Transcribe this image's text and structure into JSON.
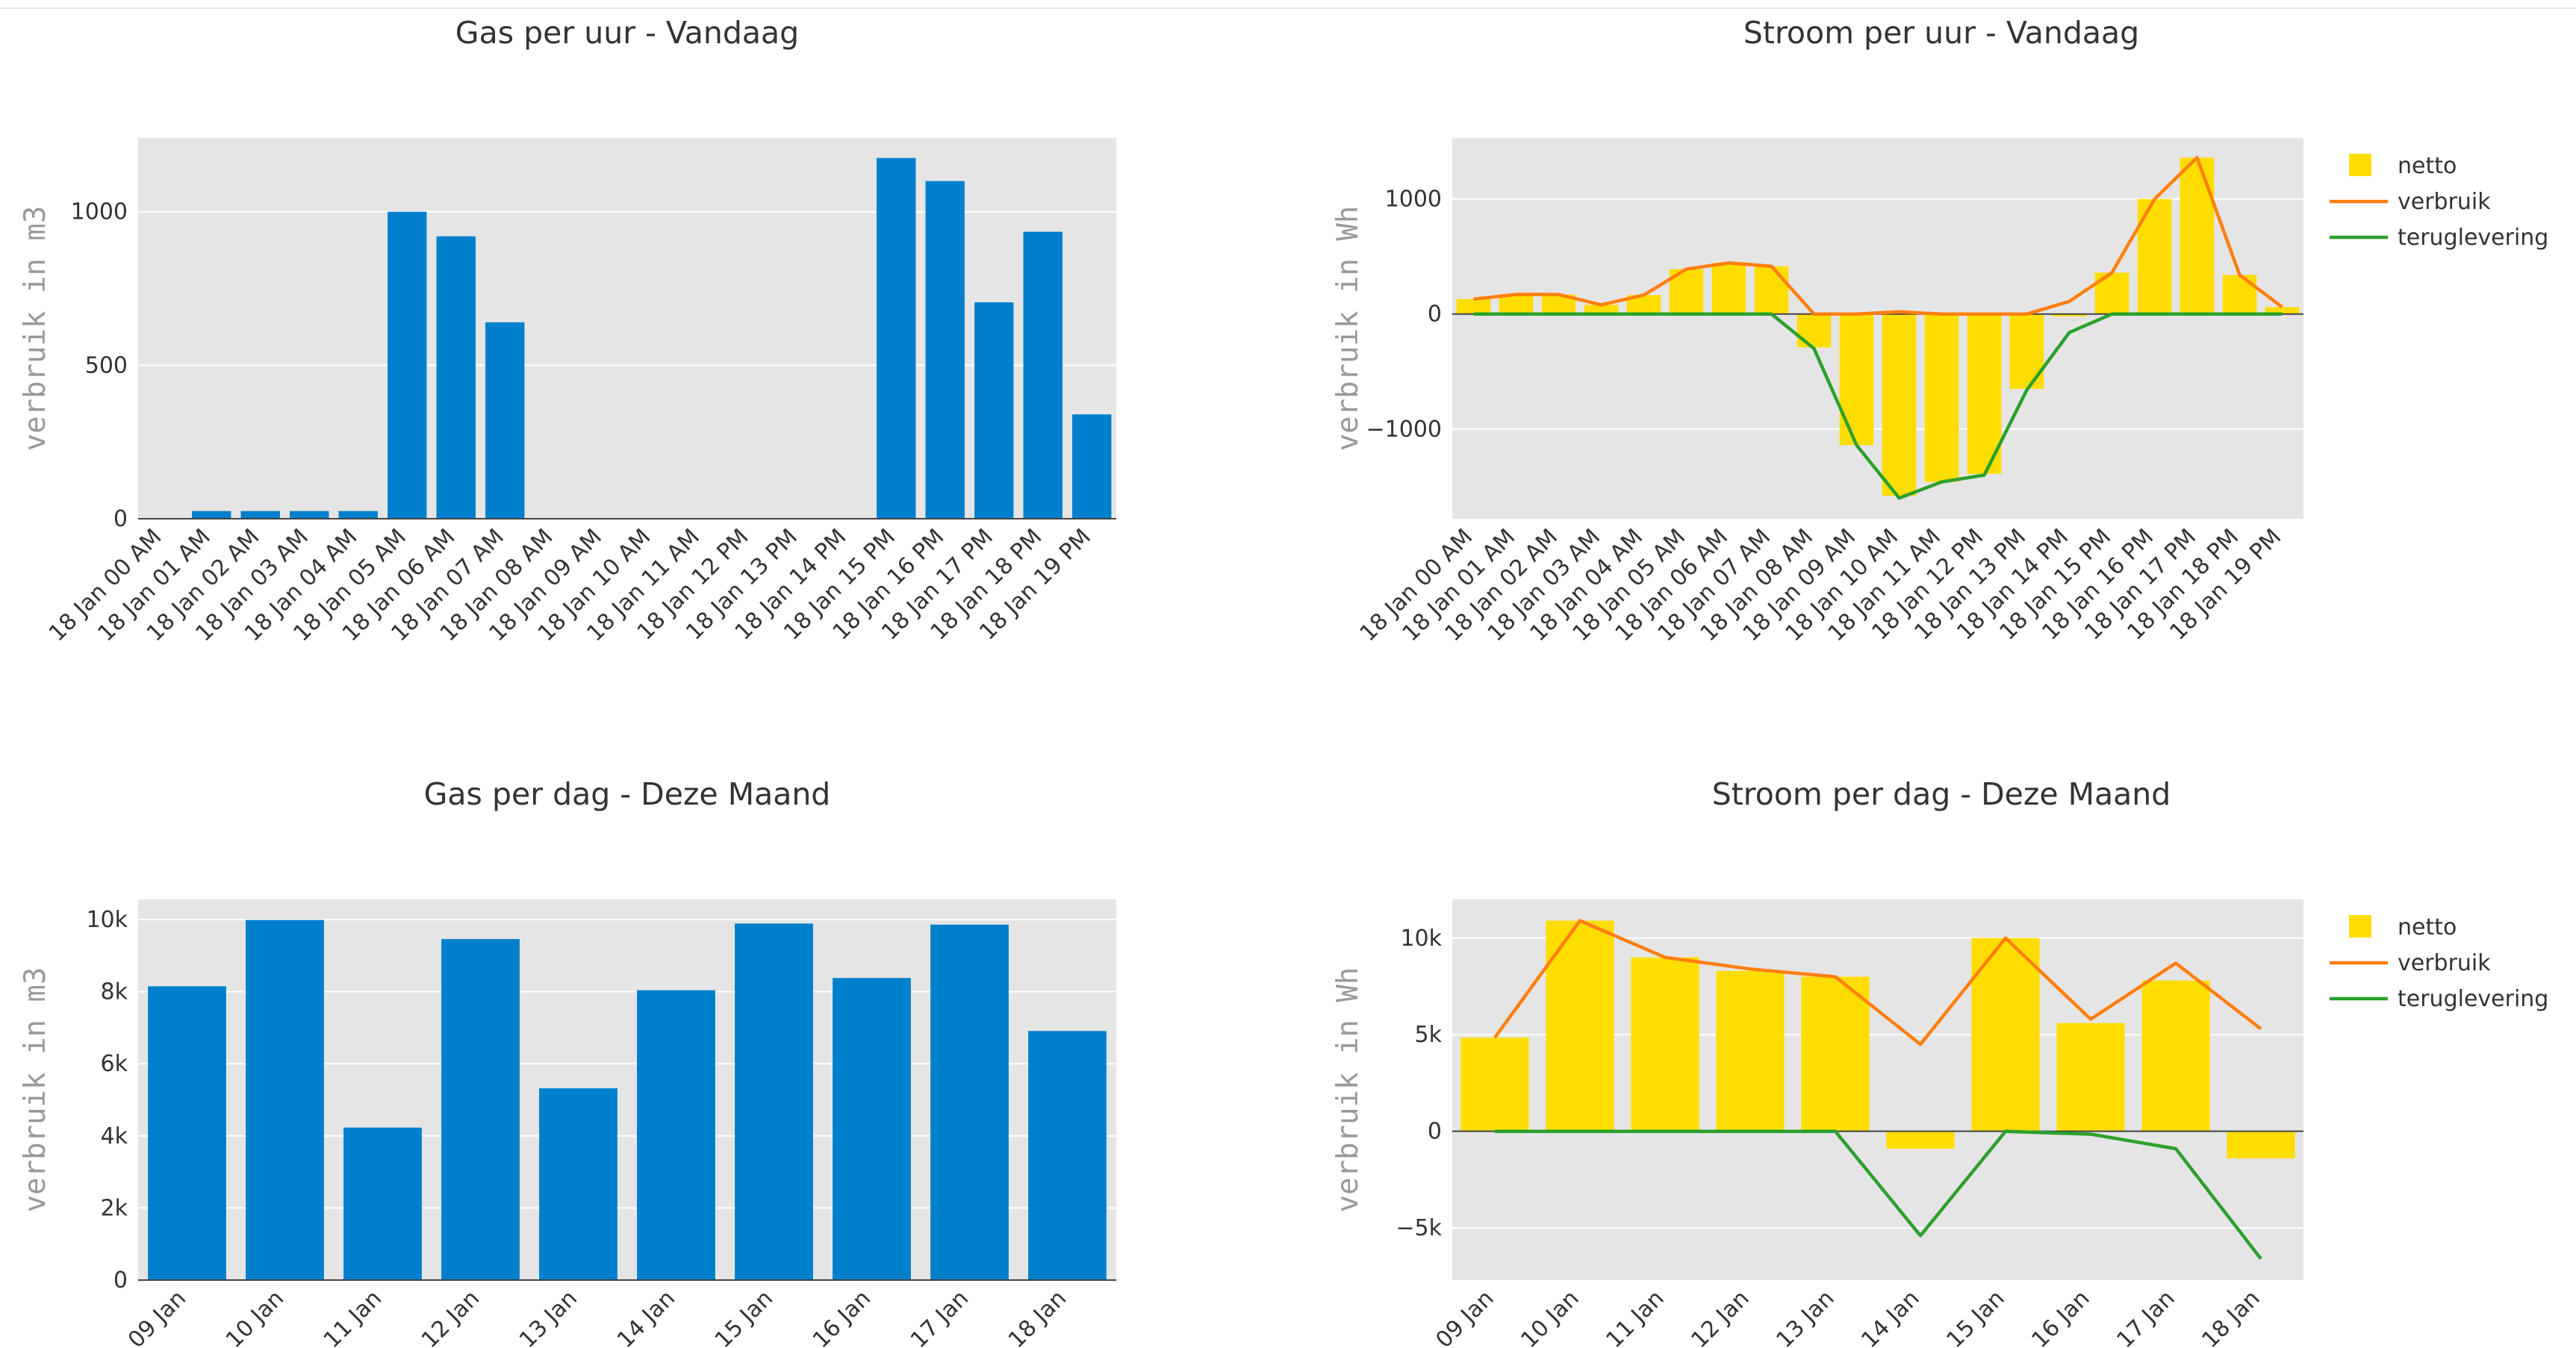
{
  "colors": {
    "gas": "#0080cc",
    "netto": "#ffdd00",
    "verbruik": "#ff7f0e",
    "teruglevering": "#2ca02c",
    "plot_bg": "#e5e5e5"
  },
  "chart_data": [
    {
      "type": "bar",
      "title": "Gas per uur - Vandaag",
      "ylabel": "verbruik in m3",
      "xlabel": "",
      "ylim": [
        0,
        1240
      ],
      "yticks": [
        0,
        500,
        1000
      ],
      "ytick_labels": [
        "0",
        "500",
        "1000"
      ],
      "grid": true,
      "legend": "none",
      "categories": [
        "18 Jan 00 AM",
        "18 Jan 01 AM",
        "18 Jan 02 AM",
        "18 Jan 03 AM",
        "18 Jan 04 AM",
        "18 Jan 05 AM",
        "18 Jan 06 AM",
        "18 Jan 07 AM",
        "18 Jan 08 AM",
        "18 Jan 09 AM",
        "18 Jan 10 AM",
        "18 Jan 11 AM",
        "18 Jan 12 PM",
        "18 Jan 13 PM",
        "18 Jan 14 PM",
        "18 Jan 15 PM",
        "18 Jan 16 PM",
        "18 Jan 17 PM",
        "18 Jan 18 PM",
        "18 Jan 19 PM"
      ],
      "series": [
        {
          "values": [
            0,
            25,
            25,
            25,
            25,
            1000,
            920,
            640,
            0,
            0,
            0,
            0,
            0,
            0,
            0,
            1175,
            1100,
            705,
            935,
            340
          ]
        }
      ]
    },
    {
      "type": "bar",
      "title": "Stroom per uur - Vandaag",
      "ylabel": "verbruik in Wh",
      "xlabel": "",
      "ylim": [
        -1780,
        1530
      ],
      "yticks": [
        -1000,
        0,
        1000
      ],
      "ytick_labels": [
        "−1000",
        "0",
        "1000"
      ],
      "grid": true,
      "legend": "right",
      "categories": [
        "18 Jan 00 AM",
        "18 Jan 01 AM",
        "18 Jan 02 AM",
        "18 Jan 03 AM",
        "18 Jan 04 AM",
        "18 Jan 05 AM",
        "18 Jan 06 AM",
        "18 Jan 07 AM",
        "18 Jan 08 AM",
        "18 Jan 09 AM",
        "18 Jan 10 AM",
        "18 Jan 11 AM",
        "18 Jan 12 PM",
        "18 Jan 13 PM",
        "18 Jan 14 PM",
        "18 Jan 15 PM",
        "18 Jan 16 PM",
        "18 Jan 17 PM",
        "18 Jan 18 PM",
        "18 Jan 19 PM"
      ],
      "series": [
        {
          "name": "netto",
          "kind": "bar",
          "values": [
            130,
            170,
            170,
            80,
            165,
            390,
            445,
            415,
            -290,
            -1140,
            -1580,
            -1460,
            -1390,
            -650,
            -20,
            360,
            1000,
            1360,
            340,
            60
          ]
        },
        {
          "name": "verbruik",
          "kind": "line",
          "values": [
            130,
            170,
            170,
            80,
            165,
            390,
            445,
            415,
            0,
            0,
            20,
            0,
            0,
            0,
            110,
            360,
            1000,
            1360,
            340,
            60
          ]
        },
        {
          "name": "teruglevering",
          "kind": "line",
          "values": [
            0,
            0,
            0,
            0,
            0,
            0,
            0,
            0,
            -300,
            -1140,
            -1600,
            -1460,
            -1400,
            -660,
            -160,
            0,
            0,
            0,
            0,
            0
          ]
        }
      ]
    },
    {
      "type": "bar",
      "title": "Gas per dag - Deze Maand",
      "ylabel": "verbruik in m3",
      "xlabel": "",
      "ylim": [
        0,
        10560
      ],
      "yticks": [
        0,
        2000,
        4000,
        6000,
        8000,
        10000
      ],
      "ytick_labels": [
        "0",
        "2k",
        "4k",
        "6k",
        "8k",
        "10k"
      ],
      "grid": true,
      "legend": "none",
      "categories": [
        "09 Jan",
        "10 Jan",
        "11 Jan",
        "12 Jan",
        "13 Jan",
        "14 Jan",
        "15 Jan",
        "16 Jan",
        "17 Jan",
        "18 Jan"
      ],
      "series": [
        {
          "values": [
            8150,
            9990,
            4230,
            9460,
            5320,
            8040,
            9890,
            8380,
            9860,
            6910
          ]
        }
      ]
    },
    {
      "type": "bar",
      "title": "Stroom per dag - Deze Maand",
      "ylabel": "verbruik in Wh",
      "xlabel": "",
      "ylim": [
        -7700,
        12000
      ],
      "yticks": [
        -5000,
        0,
        5000,
        10000
      ],
      "ytick_labels": [
        "−5k",
        "0",
        "5k",
        "10k"
      ],
      "grid": true,
      "legend": "right",
      "categories": [
        "09 Jan",
        "10 Jan",
        "11 Jan",
        "12 Jan",
        "13 Jan",
        "14 Jan",
        "15 Jan",
        "16 Jan",
        "17 Jan",
        "18 Jan"
      ],
      "series": [
        {
          "name": "netto",
          "kind": "bar",
          "values": [
            4850,
            10900,
            9000,
            8300,
            8000,
            -900,
            10000,
            5600,
            7800,
            -1400
          ]
        },
        {
          "name": "verbruik",
          "kind": "line",
          "values": [
            4850,
            10900,
            9000,
            8400,
            8000,
            4500,
            10000,
            5800,
            8700,
            5300
          ]
        },
        {
          "name": "teruglevering",
          "kind": "line",
          "values": [
            0,
            0,
            0,
            0,
            0,
            -5400,
            0,
            -150,
            -900,
            -6600
          ]
        }
      ]
    }
  ]
}
